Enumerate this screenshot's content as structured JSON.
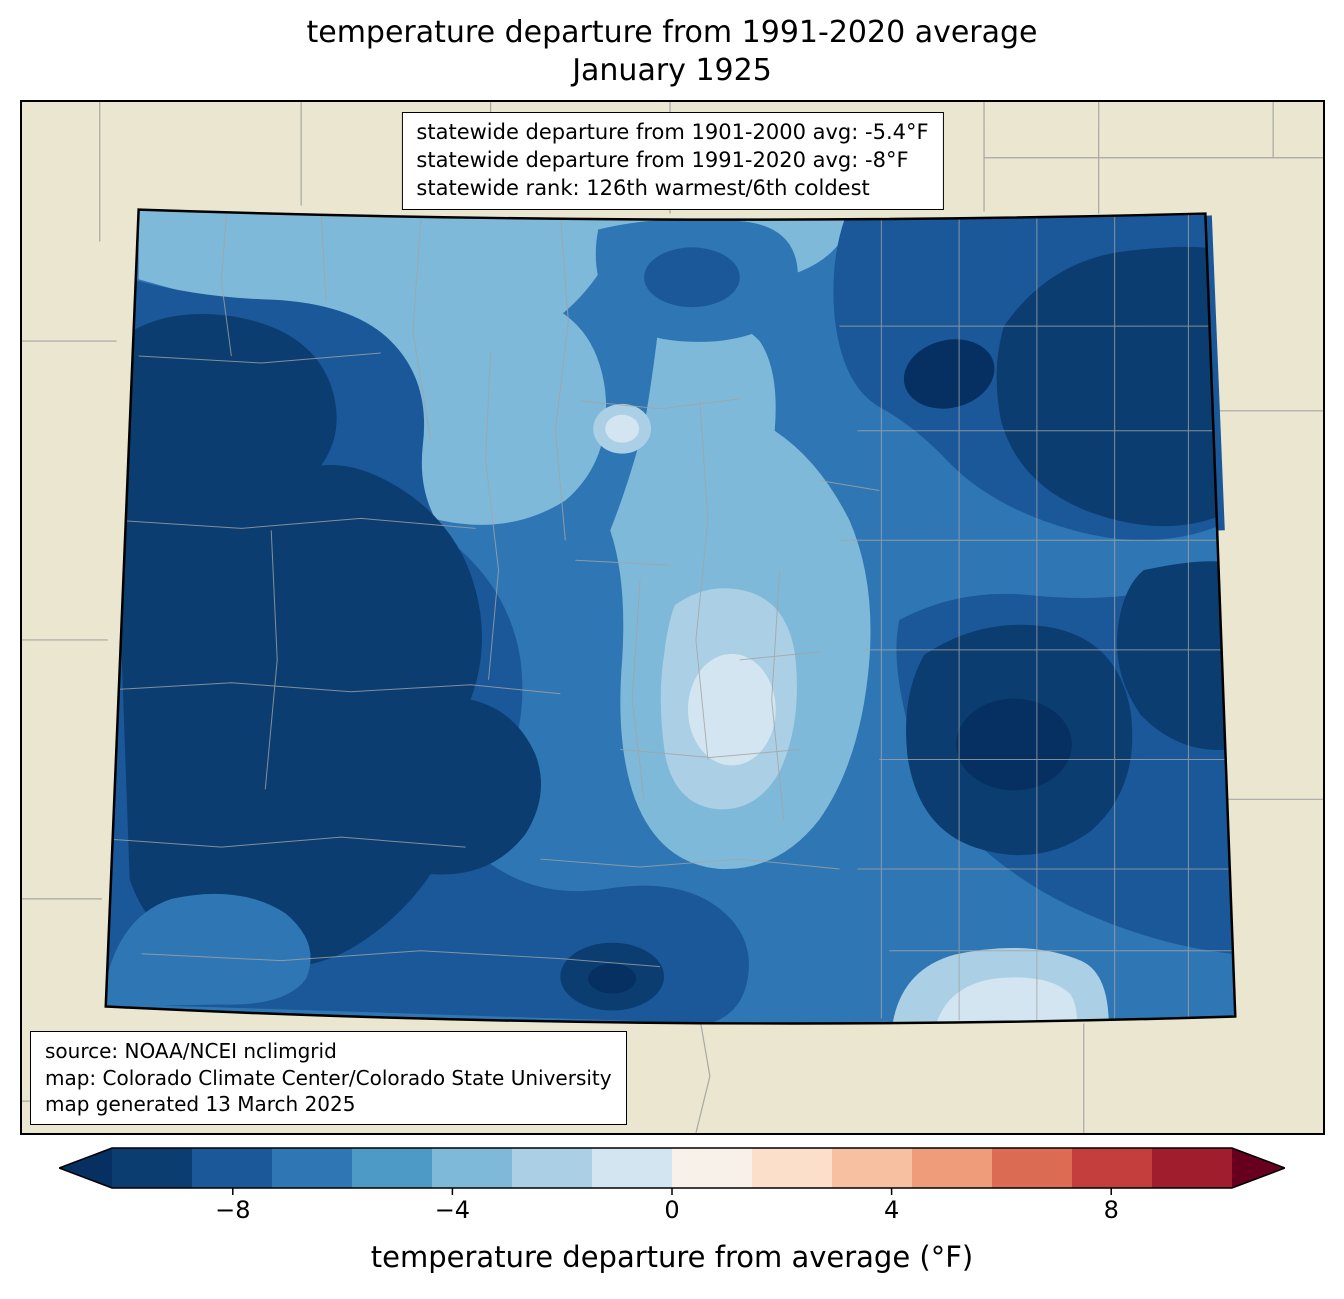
{
  "figure": {
    "title_line1": "temperature departure from 1991-2020 average",
    "title_line2": "January 1925"
  },
  "stats_box": {
    "lines": [
      "statewide departure from 1901-2000 avg: -5.4°F",
      "statewide departure from 1991-2020 avg: -8°F",
      "statewide rank: 126th warmest/6th coldest"
    ]
  },
  "source_box": {
    "lines": [
      "source: NOAA/NCEI nclimgrid",
      "map: Colorado Climate Center/Colorado State University",
      "map generated 13 March 2025"
    ]
  },
  "colorbar": {
    "label": "temperature departure from average (°F)",
    "ticks": [
      -8,
      -4,
      0,
      4,
      8
    ],
    "tick_labels": [
      "−8",
      "−4",
      "0",
      "4",
      "8"
    ],
    "value_range": [
      -10.2,
      10.2
    ],
    "under_arrow_color": "#053061",
    "over_arrow_color": "#67001f",
    "segment_colors": [
      "#0b3d70",
      "#1a5899",
      "#2e77b4",
      "#4e9ac6",
      "#7fb9d9",
      "#abd0e5",
      "#d3e5f0",
      "#f7f1ea",
      "#fbdfcb",
      "#f7c0a0",
      "#ee9c7a",
      "#dc6b54",
      "#c53e3e",
      "#a01d2e"
    ]
  },
  "map": {
    "region_label": "Colorado",
    "background_color": "#eae6d0",
    "state_border_color": "#000000",
    "county_line_color": "#a3a3a3"
  },
  "chart_data": {
    "type": "heatmap",
    "subtype": "filled-contour-map",
    "region": "Colorado with county outlines, neighboring-state county lines on beige background",
    "variable": "temperature departure from 1991-2020 average (°F)",
    "period": "January 1925",
    "colormap": "RdBu diverging (blue = colder than average, red = warmer)",
    "colorbar_range": [
      -10.2,
      10.2
    ],
    "colorbar_ticks": [
      -8,
      -4,
      0,
      4,
      8
    ],
    "statewide_values": {
      "departure_from_1901_2000_avg_f": -5.4,
      "departure_from_1991_2020_avg_f": -8,
      "rank": "126th warmest / 6th coldest"
    },
    "approx_regional_departures_f": [
      {
        "area": "northwest corner and northern border band",
        "value": -5
      },
      {
        "area": "north-central lighter lobe",
        "value": -4.5
      },
      {
        "area": "small pale oval north-center",
        "value": -2.5
      },
      {
        "area": "west-central / southwest mountains (large dark mass)",
        "value": -9.5
      },
      {
        "area": "central corridor light area",
        "value": -4
      },
      {
        "area": "central pale core (San Luis Valley area)",
        "value": -2
      },
      {
        "area": "northeast plains dark region",
        "value": -9
      },
      {
        "area": "very dark spot northeast-central",
        "value": -10
      },
      {
        "area": "east-central plains dark core",
        "value": -10
      },
      {
        "area": "south-central border dark spot",
        "value": -9.5
      },
      {
        "area": "southeast bottom-edge pale spot",
        "value": -3
      },
      {
        "area": "base/most of state",
        "value": -6.5
      }
    ]
  }
}
